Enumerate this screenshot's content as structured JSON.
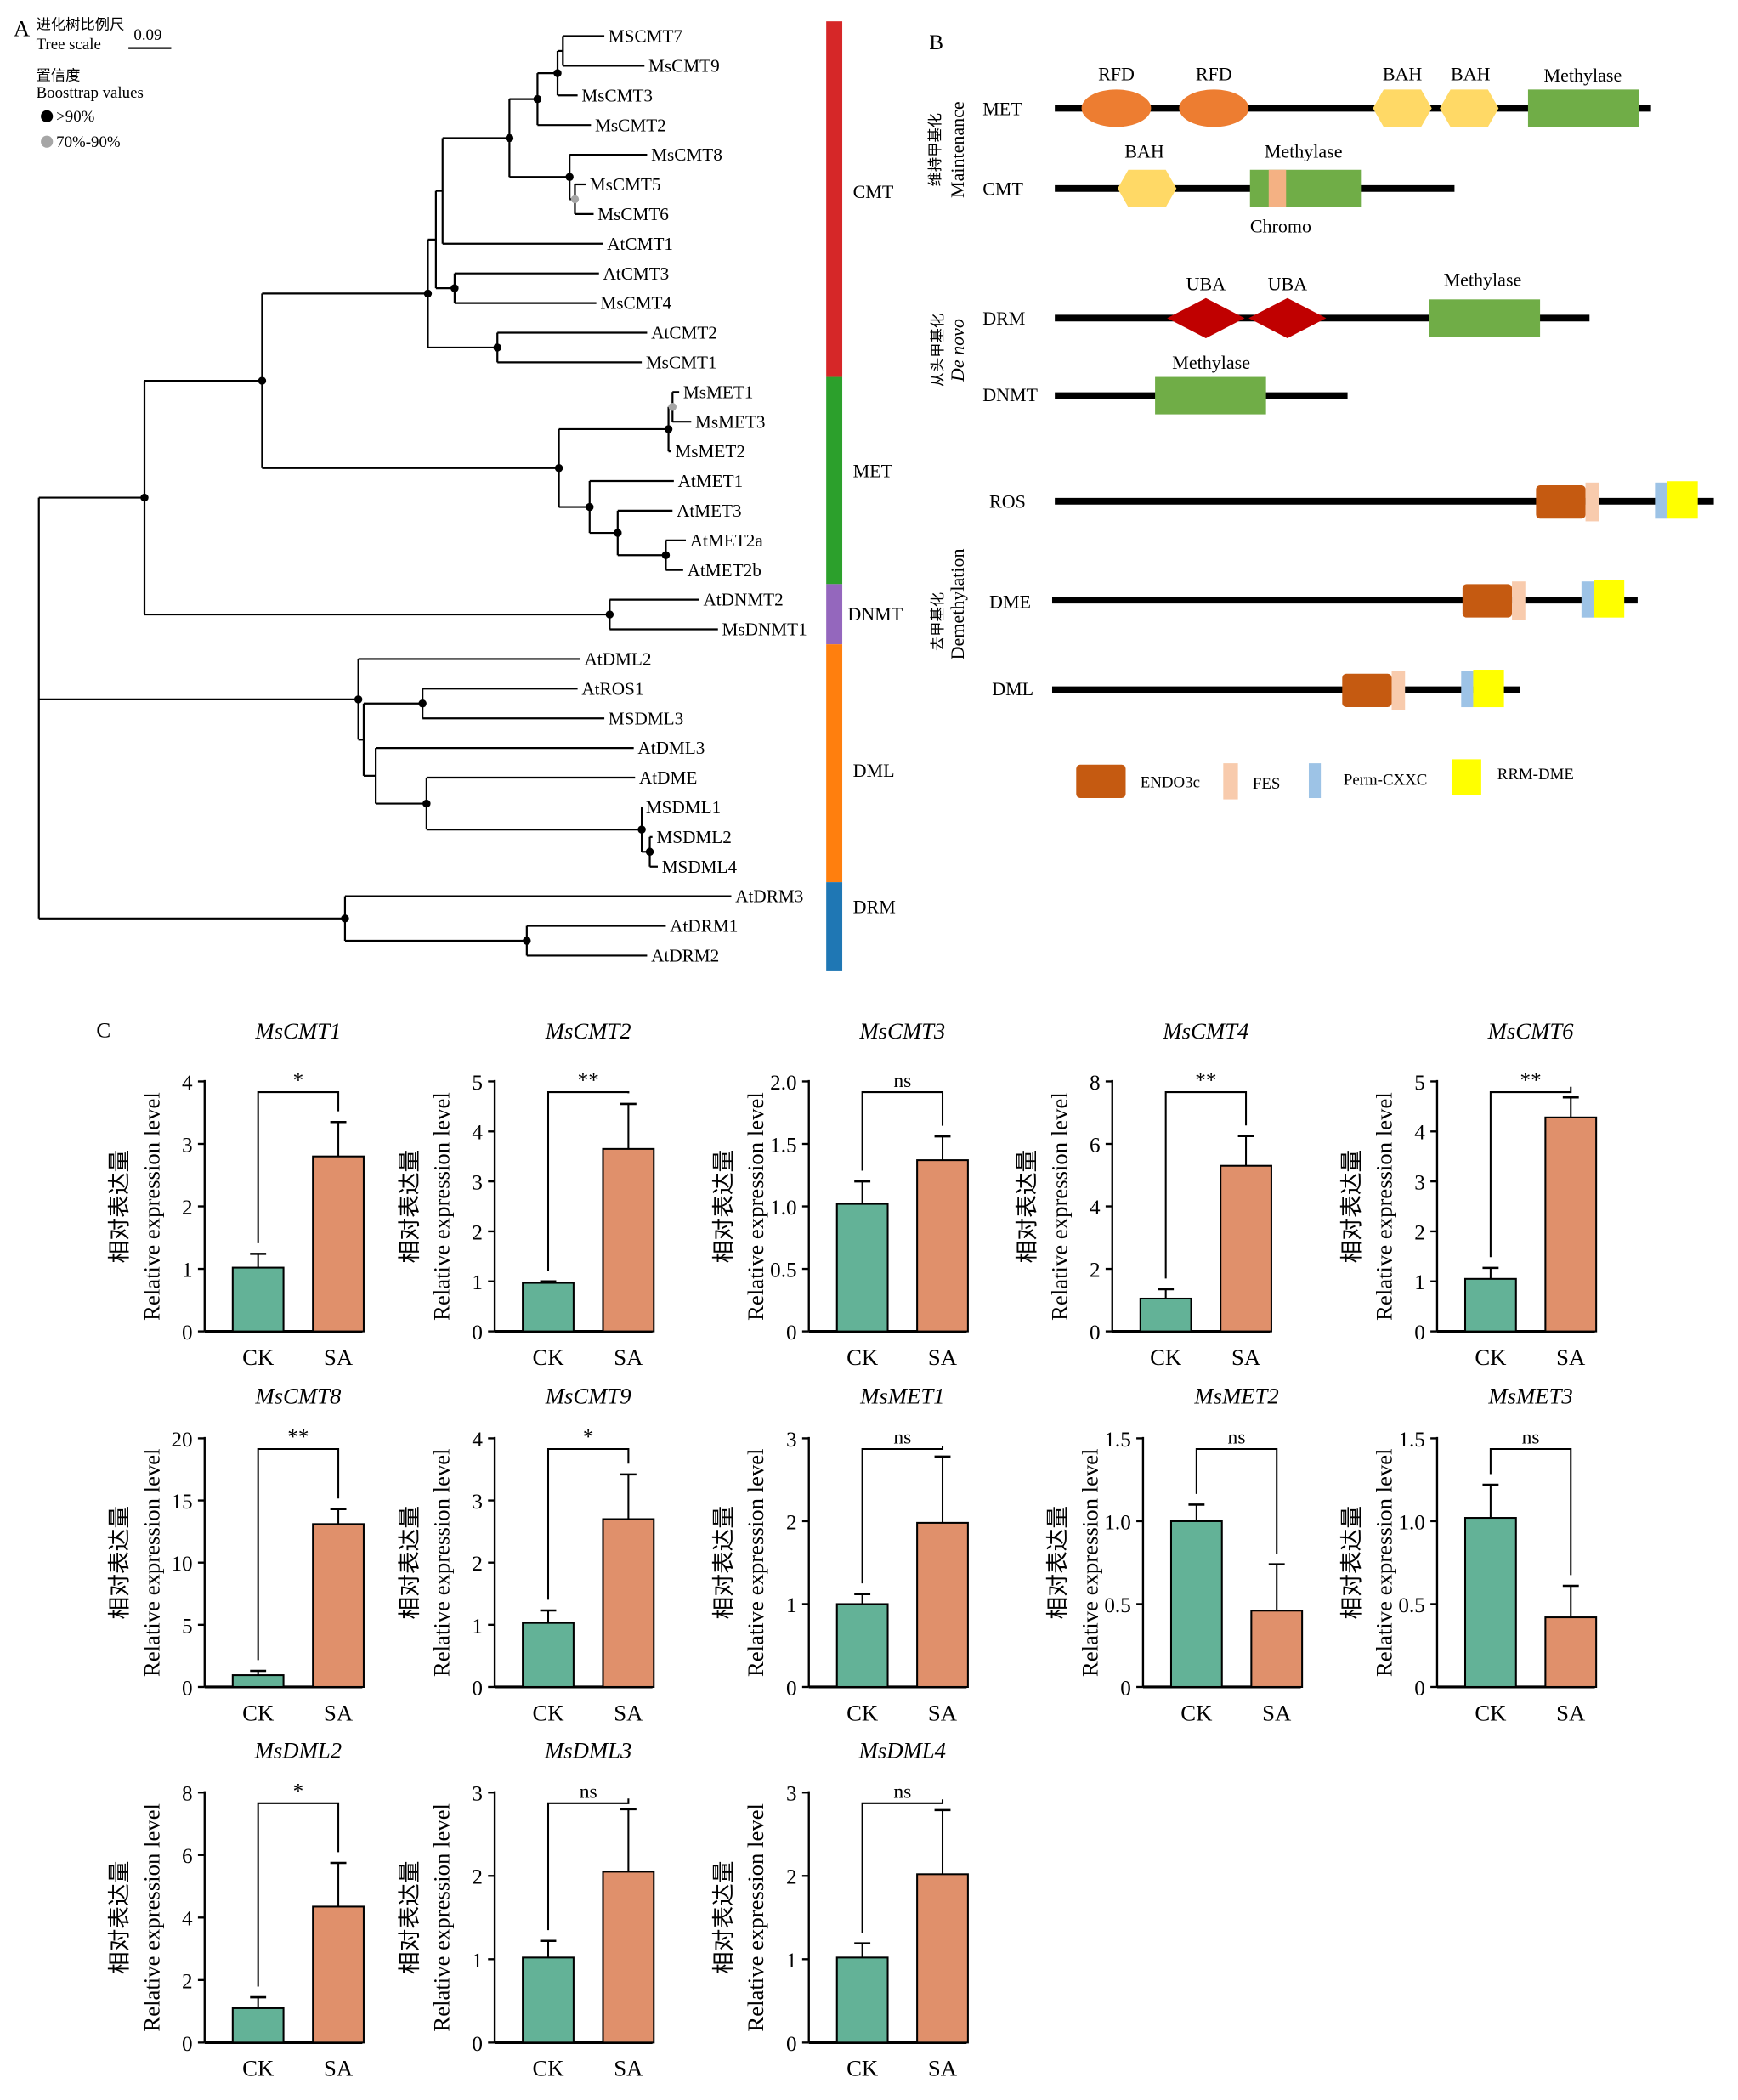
{
  "panel_a": {
    "label": "A",
    "scale_label_cn": "进化树比例尺",
    "scale_label_en": "Tree scale",
    "scale_value": "0.09",
    "bootstrap_cn": "置信度",
    "bootstrap_en": "Boosttrap values",
    "bootstrap_legend": [
      {
        "label": ">90%",
        "color": "#000000"
      },
      {
        "label": "70%-90%",
        "color": "#a6a6a6"
      }
    ],
    "leaves": [
      "MSCMT7",
      "MsCMT9",
      "MsCMT3",
      "MsCMT2",
      "MsCMT8",
      "MsCMT5",
      "MsCMT6",
      "AtCMT1",
      "AtCMT3",
      "MsCMT4",
      "AtCMT2",
      "MsCMT1",
      "MsMET1",
      "MsMET3",
      "MsMET2",
      "AtMET1",
      "AtMET3",
      "AtMET2a",
      "AtMET2b",
      "AtDNMT2",
      "MsDNMT1",
      "AtDML2",
      "AtROS1",
      "MSDML3",
      "AtDML3",
      "AtDME",
      "MSDML1",
      "MSDML2",
      "MSDML4",
      "AtDRM3",
      "AtDRM1",
      "AtDRM2"
    ],
    "clades": [
      {
        "name": "CMT",
        "color": "#d62728"
      },
      {
        "name": "MET",
        "color": "#2ca02c"
      },
      {
        "name": "DNMT",
        "color": "#9467bd"
      },
      {
        "name": "DML",
        "color": "#ff7f0e"
      },
      {
        "name": "DRM",
        "color": "#1f77b4"
      }
    ]
  },
  "panel_b": {
    "label": "B",
    "groups": [
      {
        "cn": "维持甲基化",
        "en": "Maintenance"
      },
      {
        "cn": "从头甲基化",
        "en": "De novo"
      },
      {
        "cn": "去甲基化",
        "en": "Demethylation"
      }
    ],
    "proteins": [
      "MET",
      "CMT",
      "DRM",
      "DNMT",
      "ROS",
      "DME",
      "DML"
    ],
    "domain_labels": {
      "rfd": "RFD",
      "bah": "BAH",
      "methylase": "Methylase",
      "chromo": "Chromo",
      "uba": "UBA"
    },
    "colors": {
      "rfd": "#ed7d31",
      "bah": "#ffd966",
      "methylase": "#70ad47",
      "chromo": "#f4b183",
      "uba": "#c00000",
      "endo3c": "#c55a11",
      "fes": "#f8cbad",
      "perm_cxxc": "#9dc3e6",
      "rrm_dme": "#ffff00"
    },
    "legend": [
      "ENDO3c",
      "FES",
      "Perm-CXXC",
      "RRM-DME"
    ]
  },
  "panel_c": {
    "label": "C"
  },
  "chart_data": [
    {
      "type": "bar",
      "title": "MsCMT1",
      "categories": [
        "CK",
        "SA"
      ],
      "values": [
        1.02,
        2.8
      ],
      "errors": [
        0.22,
        0.55
      ],
      "significance": "*",
      "ylim": [
        0,
        4
      ],
      "yticks": [
        "0",
        "1",
        "2",
        "3",
        "4"
      ],
      "ylabel": "Relative expression level",
      "ylabel_cn": "相对表达量"
    },
    {
      "type": "bar",
      "title": "MsCMT2",
      "categories": [
        "CK",
        "SA"
      ],
      "values": [
        0.97,
        3.65
      ],
      "errors": [
        0.03,
        0.9
      ],
      "significance": "**",
      "ylim": [
        0,
        5
      ],
      "yticks": [
        "0",
        "1",
        "2",
        "3",
        "4",
        "5"
      ],
      "ylabel": "Relative expression level",
      "ylabel_cn": "相对表达量"
    },
    {
      "type": "bar",
      "title": "MsCMT3",
      "categories": [
        "CK",
        "SA"
      ],
      "values": [
        1.02,
        1.37
      ],
      "errors": [
        0.18,
        0.19
      ],
      "significance": "ns",
      "ylim": [
        0,
        2
      ],
      "yticks": [
        "0",
        "0.5",
        "1.0",
        "1.5",
        "2.0"
      ],
      "ylabel": "Relative expression level",
      "ylabel_cn": "相对表达量"
    },
    {
      "type": "bar",
      "title": "MsCMT4",
      "categories": [
        "CK",
        "SA"
      ],
      "values": [
        1.05,
        5.3
      ],
      "errors": [
        0.3,
        0.95
      ],
      "significance": "**",
      "ylim": [
        0,
        8
      ],
      "yticks": [
        "0",
        "2",
        "4",
        "6",
        "8"
      ],
      "ylabel": "Relative expression level",
      "ylabel_cn": "相对表达量"
    },
    {
      "type": "bar",
      "title": "MsCMT6",
      "categories": [
        "CK",
        "SA"
      ],
      "values": [
        1.05,
        4.28
      ],
      "errors": [
        0.22,
        0.4
      ],
      "significance": "**",
      "ylim": [
        0,
        5
      ],
      "yticks": [
        "0",
        "1",
        "2",
        "3",
        "4",
        "5"
      ],
      "ylabel": "Relative expression level",
      "ylabel_cn": "相对表达量"
    },
    {
      "type": "bar",
      "title": "MsCMT8",
      "categories": [
        "CK",
        "SA"
      ],
      "values": [
        0.95,
        13.1
      ],
      "errors": [
        0.35,
        1.2
      ],
      "significance": "**",
      "ylim": [
        0,
        20
      ],
      "yticks": [
        "0",
        "5",
        "10",
        "15",
        "20"
      ],
      "ylabel": "Relative expression level",
      "ylabel_cn": "相对表达量"
    },
    {
      "type": "bar",
      "title": "MsCMT9",
      "categories": [
        "CK",
        "SA"
      ],
      "values": [
        1.03,
        2.7
      ],
      "errors": [
        0.2,
        0.72
      ],
      "significance": "*",
      "ylim": [
        0,
        4
      ],
      "yticks": [
        "0",
        "1",
        "2",
        "3",
        "4"
      ],
      "ylabel": "Relative expression level",
      "ylabel_cn": "相对表达量"
    },
    {
      "type": "bar",
      "title": "MsMET1",
      "categories": [
        "CK",
        "SA"
      ],
      "values": [
        1.0,
        1.98
      ],
      "errors": [
        0.12,
        0.8
      ],
      "significance": "ns",
      "ylim": [
        0,
        3
      ],
      "yticks": [
        "0",
        "1",
        "2",
        "3"
      ],
      "ylabel": "Relative expression level",
      "ylabel_cn": "相对表达量"
    },
    {
      "type": "bar",
      "title": "MsMET2",
      "categories": [
        "CK",
        "SA"
      ],
      "values": [
        1.0,
        0.46
      ],
      "errors": [
        0.1,
        0.28
      ],
      "significance": "ns",
      "ylim": [
        0,
        1.5
      ],
      "yticks": [
        "0",
        "0.5",
        "1.0",
        "1.5"
      ],
      "ylabel": "Relative expression level",
      "ylabel_cn": "相对表达量"
    },
    {
      "type": "bar",
      "title": "MsMET3",
      "categories": [
        "CK",
        "SA"
      ],
      "values": [
        1.02,
        0.42
      ],
      "errors": [
        0.2,
        0.19
      ],
      "significance": "ns",
      "ylim": [
        0,
        1.5
      ],
      "yticks": [
        "0",
        "0.5",
        "1.0",
        "1.5"
      ],
      "ylabel": "Relative expression level",
      "ylabel_cn": "相对表达量"
    },
    {
      "type": "bar",
      "title": "MsDML2",
      "categories": [
        "CK",
        "SA"
      ],
      "values": [
        1.1,
        4.35
      ],
      "errors": [
        0.35,
        1.4
      ],
      "significance": "*",
      "ylim": [
        0,
        8
      ],
      "yticks": [
        "0",
        "2",
        "4",
        "6",
        "8"
      ],
      "ylabel": "Relative expression level",
      "ylabel_cn": "相对表达量"
    },
    {
      "type": "bar",
      "title": "MsDML3",
      "categories": [
        "CK",
        "SA"
      ],
      "values": [
        1.02,
        2.05
      ],
      "errors": [
        0.2,
        0.75
      ],
      "significance": "ns",
      "ylim": [
        0,
        3
      ],
      "yticks": [
        "0",
        "1",
        "2",
        "3"
      ],
      "ylabel": "Relative expression level",
      "ylabel_cn": "相对表达量"
    },
    {
      "type": "bar",
      "title": "MsDML4",
      "categories": [
        "CK",
        "SA"
      ],
      "values": [
        1.02,
        2.02
      ],
      "errors": [
        0.17,
        0.77
      ],
      "significance": "ns",
      "ylim": [
        0,
        3
      ],
      "yticks": [
        "0",
        "1",
        "2",
        "3"
      ],
      "ylabel": "Relative expression level",
      "ylabel_cn": "相对表达量"
    }
  ],
  "chart_colors": {
    "CK": "#63b297",
    "SA": "#e0906b"
  }
}
